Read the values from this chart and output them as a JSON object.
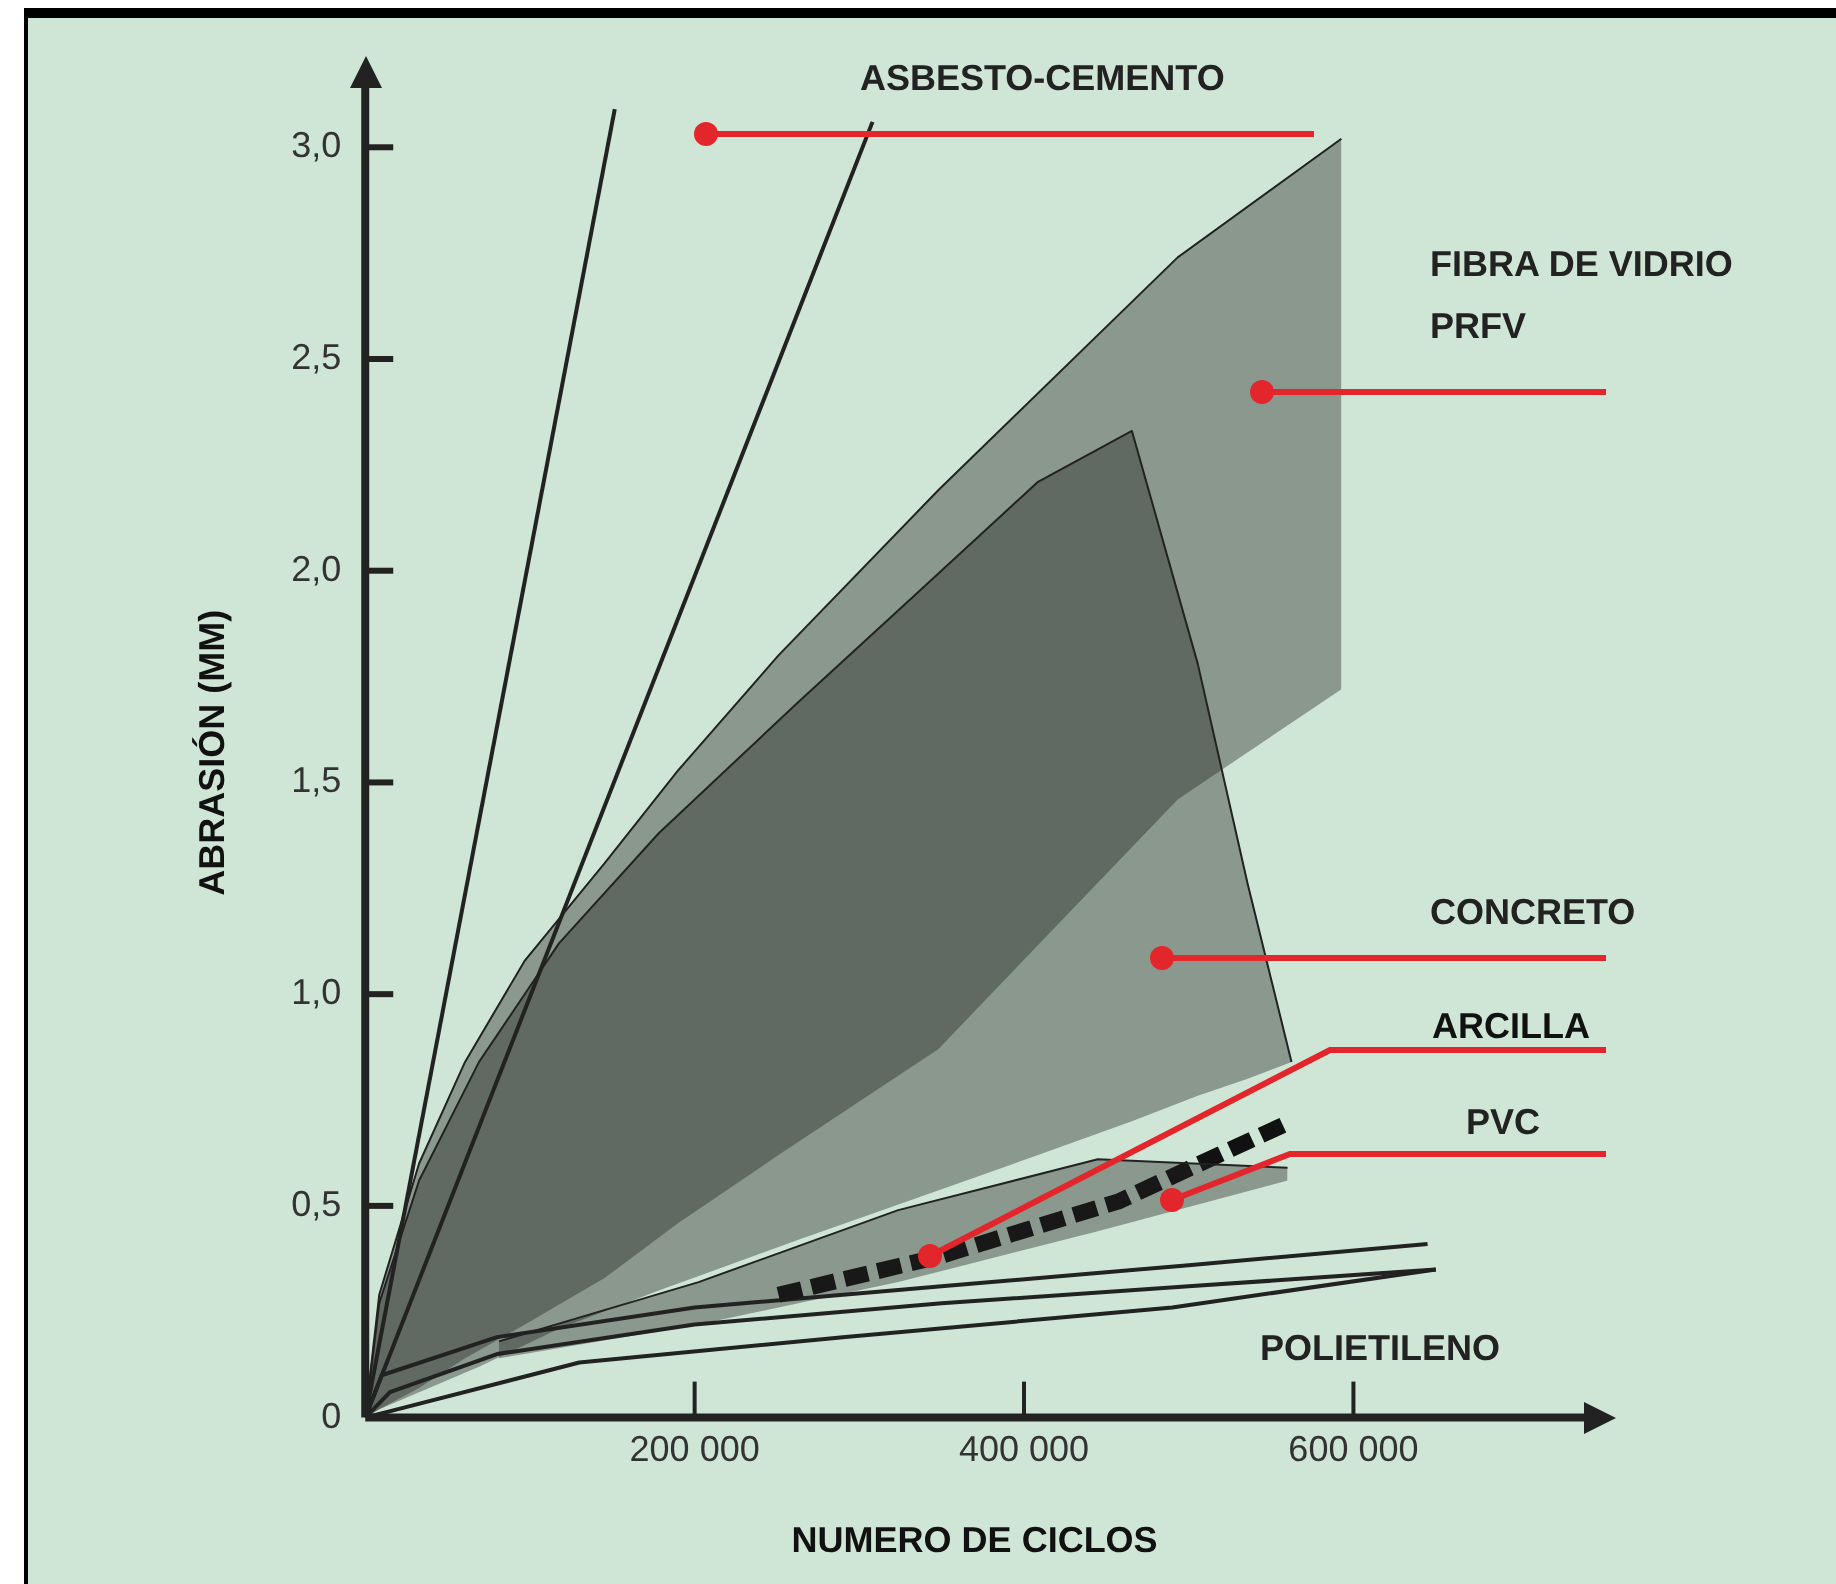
{
  "chart_data": {
    "type": "line",
    "xlabel": "NUMERO DE CICLOS",
    "ylabel": "ABRASIÓN (MM)",
    "xlim": [
      0,
      740000
    ],
    "ylim": [
      0,
      3.14
    ],
    "xticks": [
      {
        "value": 200000,
        "label": "200 000"
      },
      {
        "value": 400000,
        "label": "400 000"
      },
      {
        "value": 600000,
        "label": "600 000"
      }
    ],
    "yticks": [
      {
        "value": 0,
        "label": "0"
      },
      {
        "value": 0.5,
        "label": "0,5"
      },
      {
        "value": 1,
        "label": "1,0"
      },
      {
        "value": 1.5,
        "label": "1,5"
      },
      {
        "value": 2,
        "label": "2,0"
      },
      {
        "value": 2.5,
        "label": "2,5"
      },
      {
        "value": 3,
        "label": "3,0"
      }
    ],
    "legend": false,
    "grid": false,
    "marker": "none",
    "series": [
      {
        "type": "line",
        "color": "#222222",
        "x": [
          0,
          151500
        ],
        "values": [
          0,
          3.09
        ]
      },
      {
        "name": "ASBESTO-CEMENTO",
        "type": "line",
        "color": "#222222",
        "x": [
          0,
          308000
        ],
        "values": [
          0,
          3.06
        ]
      },
      {
        "name": "FIBRA DE VIDRIO PRFV",
        "type": "line",
        "color": "#222222",
        "x": [
          0,
          8500,
          32700,
          60600,
          97000,
          145500,
          190300,
          250900,
          347900,
          493300,
          592700
        ],
        "values": [
          0,
          0.29,
          0.6,
          0.84,
          1.08,
          1.31,
          1.53,
          1.8,
          2.19,
          2.74,
          3.02
        ],
        "upper": [
          0,
          0.29,
          0.6,
          0.84,
          1.08,
          1.31,
          1.53,
          1.8,
          2.19,
          2.74,
          3.02
        ],
        "lower": [
          0,
          0.02,
          0.07,
          0.14,
          0.22,
          0.33,
          0.46,
          0.62,
          0.87,
          1.46,
          1.72
        ]
      },
      {
        "name": "CONCRETO",
        "type": "line",
        "color": "#222222",
        "x": [
          0,
          8500,
          32700,
          69100,
          117600,
          178200,
          263000,
          335800,
          408500,
          465500,
          505500,
          535800,
          562400
        ],
        "values": [
          0,
          0.27,
          0.56,
          0.84,
          1.12,
          1.38,
          1.69,
          1.95,
          2.21,
          2.33,
          1.78,
          1.26,
          0.84
        ],
        "upper": [
          0,
          0.27,
          0.56,
          0.84,
          1.12,
          1.38,
          1.69,
          1.95,
          2.21,
          2.33,
          1.78,
          1.26,
          0.84
        ],
        "lower": [
          0,
          0.02,
          0.06,
          0.12,
          0.21,
          0.3,
          0.42,
          0.52,
          0.62,
          0.7,
          0.76,
          0.8,
          0.84
        ]
      },
      {
        "name": "PVC",
        "type": "line",
        "color": "#222222",
        "x": [
          81200,
          202400,
          323600,
          444800,
          560000
        ],
        "values": [
          0.18,
          0.32,
          0.49,
          0.61,
          0.59
        ],
        "upper": [
          0.18,
          0.32,
          0.49,
          0.61,
          0.59
        ],
        "lower": [
          0.14,
          0.22,
          0.32,
          0.44,
          0.56
        ]
      },
      {
        "name": "ARCILLA",
        "type": "line",
        "line_style": "dashed",
        "color": "#111111",
        "x": [
          250900,
          347900,
          457000,
          562400
        ],
        "values": [
          0.29,
          0.38,
          0.51,
          0.7
        ]
      },
      {
        "name": "POLIETILENO",
        "type": "line",
        "color": "#222222",
        "x": [
          0,
          10000,
          80000,
          200000,
          350000,
          500000,
          645000
        ],
        "values": [
          0,
          0.1,
          0.19,
          0.26,
          0.31,
          0.36,
          0.41
        ]
      },
      {
        "type": "line",
        "color": "#222222",
        "x": [
          0,
          15000,
          80000,
          200000,
          350000,
          500000,
          650000
        ],
        "values": [
          0,
          0.06,
          0.15,
          0.22,
          0.27,
          0.31,
          0.35
        ]
      },
      {
        "type": "line",
        "color": "#222222",
        "x": [
          0,
          20000,
          130000,
          290000,
          490000,
          650000
        ],
        "values": [
          0,
          0.02,
          0.13,
          0.19,
          0.26,
          0.35
        ]
      }
    ]
  }
}
